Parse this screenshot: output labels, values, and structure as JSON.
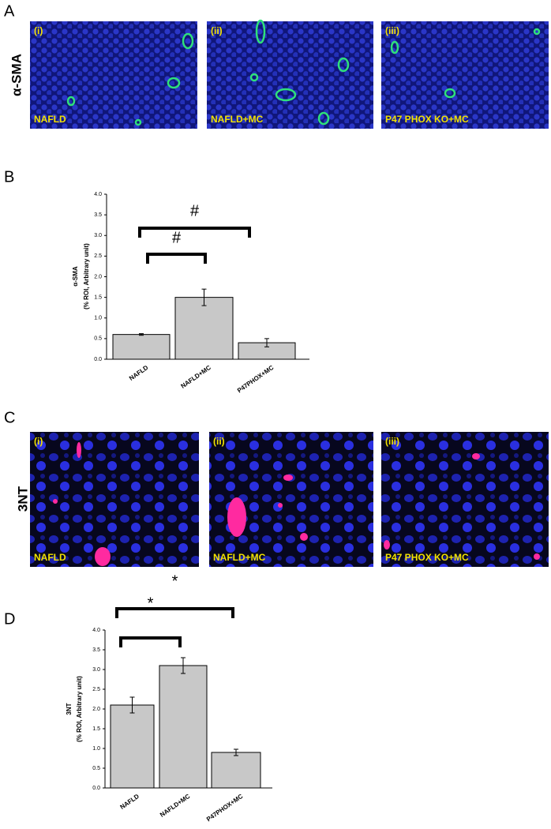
{
  "panels": [
    {
      "letter": "A",
      "stain": "α-SMA",
      "images": [
        {
          "index": "(i)",
          "label": "NAFLD"
        },
        {
          "index": "(ii)",
          "label": "NAFLD+MC"
        },
        {
          "index": "(iii)",
          "label": "P47 PHOX KO+MC"
        }
      ]
    },
    {
      "letter": "C",
      "stain": "3NT",
      "images": [
        {
          "index": "(i)",
          "label": "NAFLD"
        },
        {
          "index": "(ii)",
          "label": "NAFLD+MC"
        },
        {
          "index": "(iii)",
          "label": "P47 PHOX KO+MC"
        }
      ]
    }
  ],
  "chart_data": [
    {
      "type": "bar",
      "panel": "B",
      "ylabel": "α-SMA",
      "ylabel_unit": "(% ROI, Arbitrary unit)",
      "categories": [
        "NAFLD",
        "NAFLD+MC",
        "P47PHOX+MC"
      ],
      "values": [
        0.6,
        1.5,
        0.4
      ],
      "errors": [
        0.02,
        0.2,
        0.1
      ],
      "color": "#c8c8c8",
      "ylim": [
        0,
        4
      ],
      "yticks": [
        {
          "value": 0,
          "label": "0.0"
        },
        0.5,
        {
          "value": 1,
          "label": "1.0"
        },
        1.5,
        {
          "value": 2,
          "label": "2.0"
        },
        2.5,
        {
          "value": 3,
          "label": "3.0"
        },
        3.5,
        {
          "value": 4,
          "label": "4.0"
        }
      ],
      "annotations": [
        "#",
        "#"
      ]
    },
    {
      "type": "bar",
      "panel": "D",
      "ylabel": "3NT",
      "ylabel_unit": "(% ROI, Arbitrary unit)",
      "categories": [
        "NAFLD",
        "NAFLD+MC",
        "P47PHOX+MC"
      ],
      "values": [
        2.1,
        3.1,
        0.9
      ],
      "errors": [
        0.2,
        0.2,
        0.08
      ],
      "color": "#c8c8c8",
      "ylim": [
        0,
        4
      ],
      "yticks": [
        {
          "value": 0,
          "label": "0.0"
        },
        0.5,
        {
          "value": 1,
          "label": "1.0"
        },
        1.5,
        {
          "value": 2,
          "label": "2.0"
        },
        2.5,
        {
          "value": 3,
          "label": "3.0"
        },
        3.5,
        {
          "value": 4,
          "label": "4.0"
        }
      ],
      "annotations": [
        "*",
        "*"
      ]
    }
  ]
}
